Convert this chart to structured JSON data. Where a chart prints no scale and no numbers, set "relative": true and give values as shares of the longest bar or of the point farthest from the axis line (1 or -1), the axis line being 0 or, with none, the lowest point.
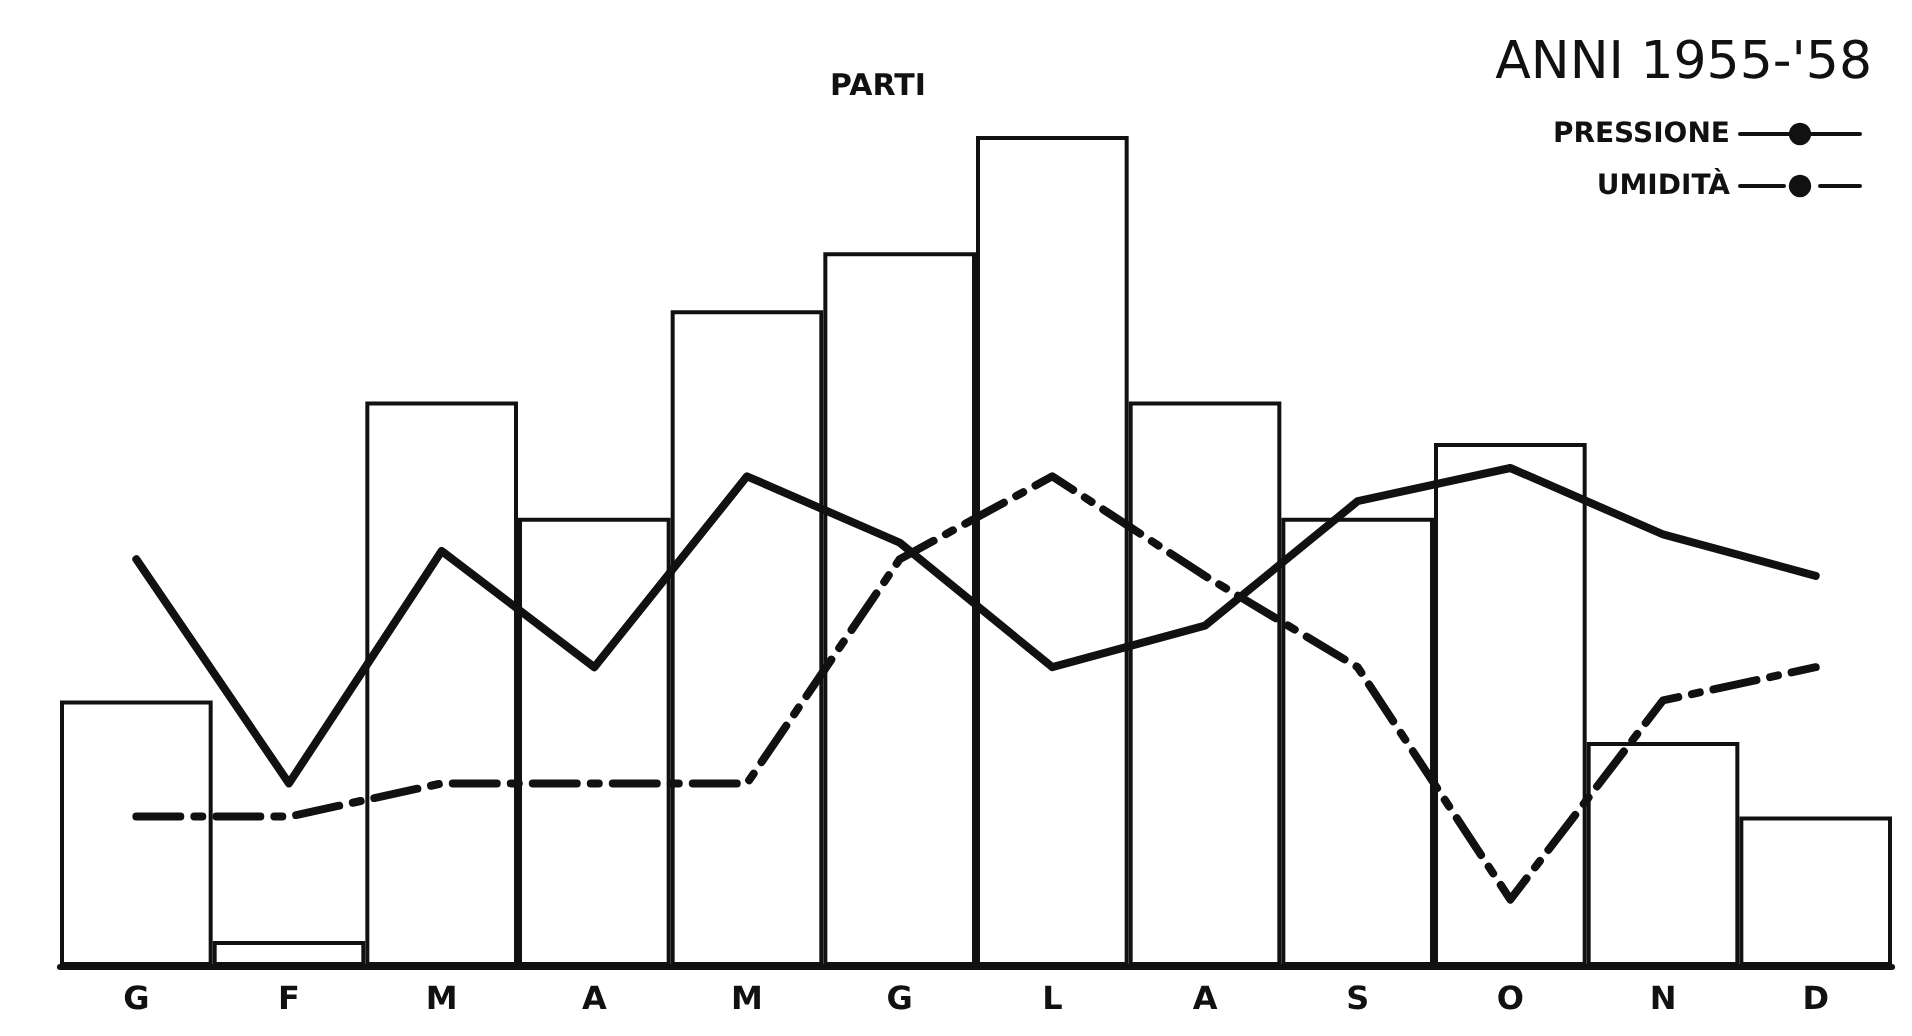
{
  "chart_data": {
    "type": "bar",
    "relative": true,
    "legend_title": "ANNI 1955-'58",
    "legend": "top right",
    "grid": false,
    "categories": [
      "G",
      "F",
      "M",
      "A",
      "M",
      "G",
      "L",
      "A",
      "S",
      "O",
      "N",
      "D"
    ],
    "series": [
      {
        "name": "PARTI",
        "color": "#ffffff",
        "values": [
          0.32,
          0.03,
          0.68,
          0.54,
          0.79,
          0.86,
          1,
          0.68,
          0.54,
          0.63,
          0.27,
          0.18
        ]
      },
      {
        "name": "PRESSIONE",
        "type": "line",
        "color": "#111111",
        "line_style": "solid",
        "marker": "none",
        "values": [
          0.49,
          0.22,
          0.5,
          0.36,
          0.59,
          0.51,
          0.36,
          0.41,
          0.56,
          0.6,
          0.52,
          0.47
        ]
      },
      {
        "name": "UMIDITÀ",
        "type": "line",
        "color": "#111111",
        "line_style": "dashed",
        "marker": "none",
        "values": [
          0.18,
          0.18,
          0.22,
          0.22,
          0.22,
          0.49,
          0.59,
          0.47,
          0.36,
          0.08,
          0.32,
          0.36
        ]
      }
    ]
  }
}
